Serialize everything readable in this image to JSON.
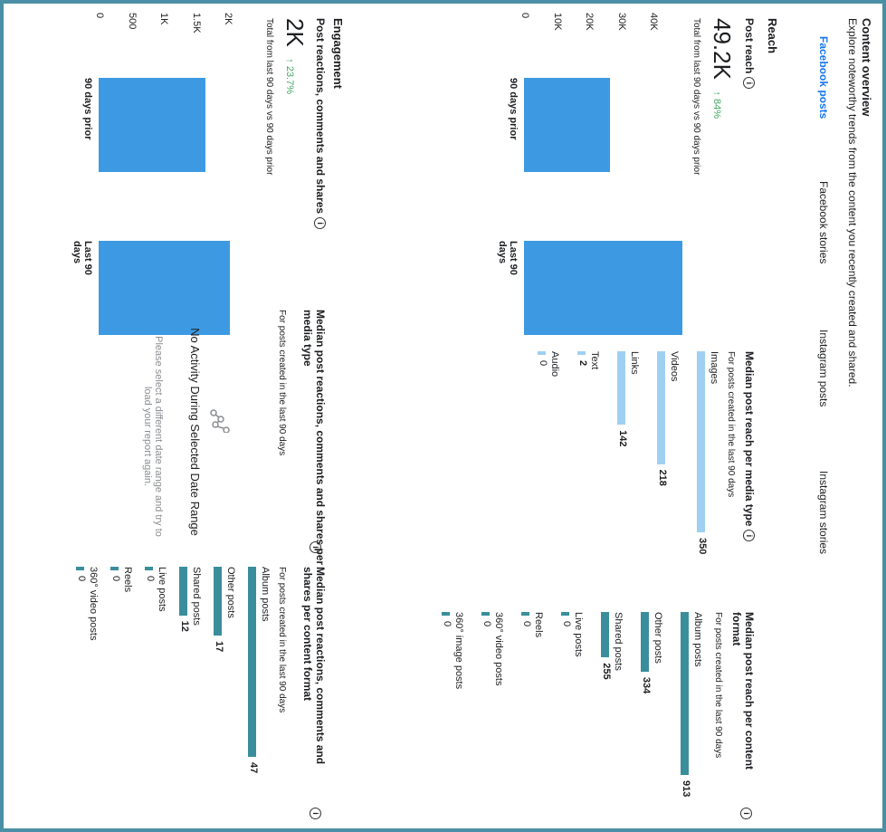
{
  "header": {
    "title": "Content overview",
    "subtitle": "Explore noteworthy trends from the content you recently created and shared."
  },
  "tabs": [
    "Facebook posts",
    "Facebook stories",
    "Instagram posts",
    "Instagram stories"
  ],
  "reach": {
    "section": "Reach",
    "metric_label": "Post reach",
    "value": "49.2K",
    "delta": "↑ 84%",
    "compare_note": "Total from last 90 days vs 90 days prior",
    "chart_data": {
      "type": "bar",
      "categories": [
        "90 days prior",
        "Last 90 days"
      ],
      "values": [
        26700,
        49200
      ],
      "ylim": [
        0,
        45000
      ],
      "yticks": [
        "0",
        "10K",
        "20K",
        "30K",
        "40K"
      ]
    }
  },
  "engagement": {
    "section": "Engagement",
    "metric_label": "Post reactions, comments and shares",
    "value": "2K",
    "delta": "↑ 23.7%",
    "compare_note": "Total from last 90 days vs 90 days prior",
    "chart_data": {
      "type": "bar",
      "categories": [
        "90 days prior",
        "Last 90 days"
      ],
      "values": [
        1620,
        2000
      ],
      "ylim": [
        0,
        2200
      ],
      "yticks": [
        "0",
        "500",
        "1K",
        "1.5K",
        "2K"
      ]
    }
  },
  "reach_media": {
    "title": "Median post reach per media type",
    "note": "For posts created in the last 90 days",
    "items": [
      {
        "label": "Images",
        "value": "350",
        "v": 350
      },
      {
        "label": "Videos",
        "value": "218",
        "v": 218
      },
      {
        "label": "Links",
        "value": "142",
        "v": 142
      },
      {
        "label": "Text",
        "value": "2",
        "v": 2
      },
      {
        "label": "Audio",
        "value": "0",
        "v": 0
      }
    ]
  },
  "reach_format": {
    "title": "Median post reach per content format",
    "note": "For posts created in the last 90 days",
    "items": [
      {
        "label": "Album posts",
        "value": "913",
        "v": 913
      },
      {
        "label": "Other posts",
        "value": "334",
        "v": 334
      },
      {
        "label": "Shared posts",
        "value": "255",
        "v": 255
      },
      {
        "label": "Live posts",
        "value": "0",
        "v": 0
      },
      {
        "label": "Reels",
        "value": "0",
        "v": 0
      },
      {
        "label": "360° video posts",
        "value": "0",
        "v": 0
      },
      {
        "label": "360° image posts",
        "value": "0",
        "v": 0
      }
    ]
  },
  "eng_media": {
    "title": "Median post reactions, comments and shares per media type",
    "note": "For posts created in the last 90 days",
    "empty_title": "No Activity During Selected Date Range",
    "empty_body": "Please select a different date range and try to load your report again."
  },
  "eng_format": {
    "title": "Median post reactions, comments and shares per content format",
    "note": "For posts created in the last 90 days",
    "items": [
      {
        "label": "Album posts",
        "value": "47",
        "v": 47
      },
      {
        "label": "Other posts",
        "value": "17",
        "v": 17
      },
      {
        "label": "Shared posts",
        "value": "12",
        "v": 12
      },
      {
        "label": "Live posts",
        "value": "0",
        "v": 0
      },
      {
        "label": "Reels",
        "value": "0",
        "v": 0
      },
      {
        "label": "360° video posts",
        "value": "0",
        "v": 0
      }
    ]
  },
  "colors": {
    "accent": "#1877f2",
    "bar": "#3d9ae2",
    "light_bar": "#9fd0f2",
    "teal_bar": "#3a8e9b",
    "positive": "#42a762"
  }
}
